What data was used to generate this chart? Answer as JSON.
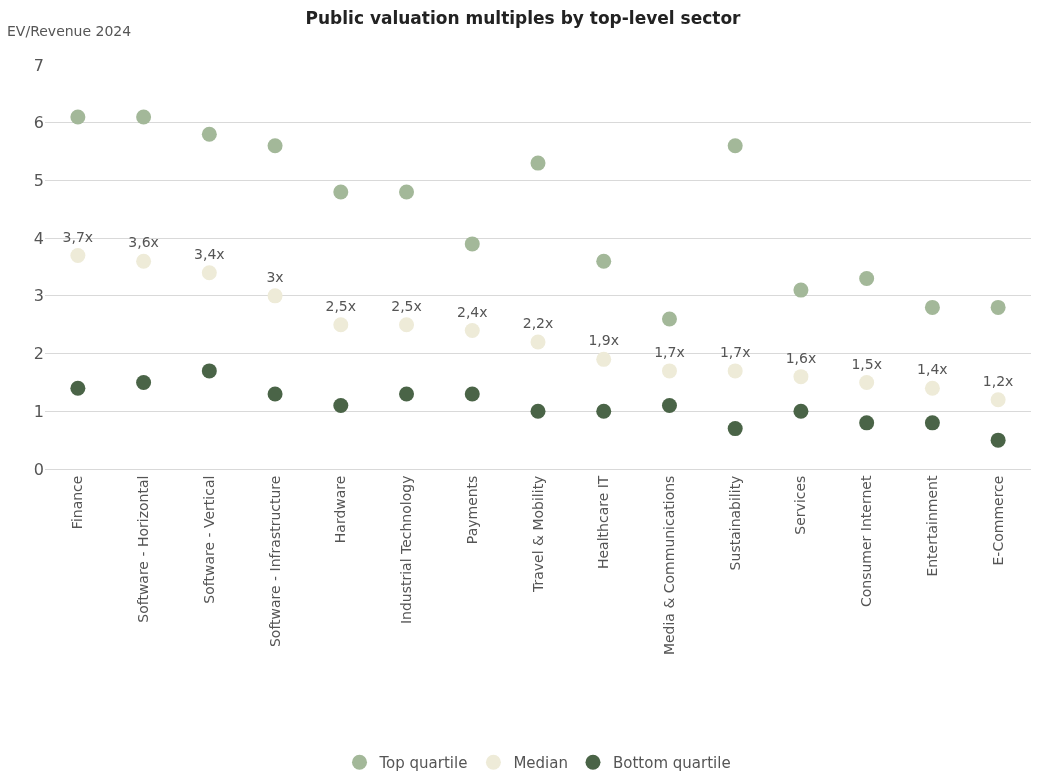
{
  "chart_data": {
    "type": "scatter",
    "title": "Public valuation multiples by top-level sector",
    "ylabel": "EV/Revenue 2024",
    "categories": [
      "Finance",
      "Software - Horizontal",
      "Software - Vertical",
      "Software - Infrastructure",
      "Hardware",
      "Industrial Technology",
      "Payments",
      "Travel & Mobility",
      "Healthcare IT",
      "Media & Communications",
      "Sustainability",
      "Services",
      "Consumer Internet",
      "Entertainment",
      "E-Commerce"
    ],
    "series": [
      {
        "name": "Top quartile",
        "color": "#a3b899",
        "values": [
          6.1,
          6.1,
          5.8,
          5.6,
          4.8,
          4.8,
          3.9,
          5.3,
          3.6,
          2.6,
          5.6,
          3.1,
          3.3,
          2.8,
          2.8
        ]
      },
      {
        "name": "Median",
        "color": "#eeebd8",
        "values": [
          3.7,
          3.6,
          3.4,
          3.0,
          2.5,
          2.5,
          2.4,
          2.2,
          1.9,
          1.7,
          1.7,
          1.6,
          1.5,
          1.4,
          1.2
        ],
        "value_labels": [
          "3,7x",
          "3,6x",
          "3,4x",
          "3x",
          "2,5x",
          "2,5x",
          "2,4x",
          "2,2x",
          "1,9x",
          "1,7x",
          "1,7x",
          "1,6x",
          "1,5x",
          "1,4x",
          "1,2x"
        ]
      },
      {
        "name": "Bottom quartile",
        "color": "#4a6447",
        "values": [
          1.4,
          1.5,
          1.7,
          1.3,
          1.1,
          1.3,
          1.3,
          1.0,
          1.0,
          1.1,
          0.7,
          1.0,
          0.8,
          0.8,
          0.5
        ]
      }
    ],
    "ylim": [
      0,
      7
    ],
    "yticks": [
      0,
      1,
      2,
      3,
      4,
      5,
      6,
      7
    ],
    "grid": "y",
    "legend": "bottom",
    "marker": "circle"
  }
}
